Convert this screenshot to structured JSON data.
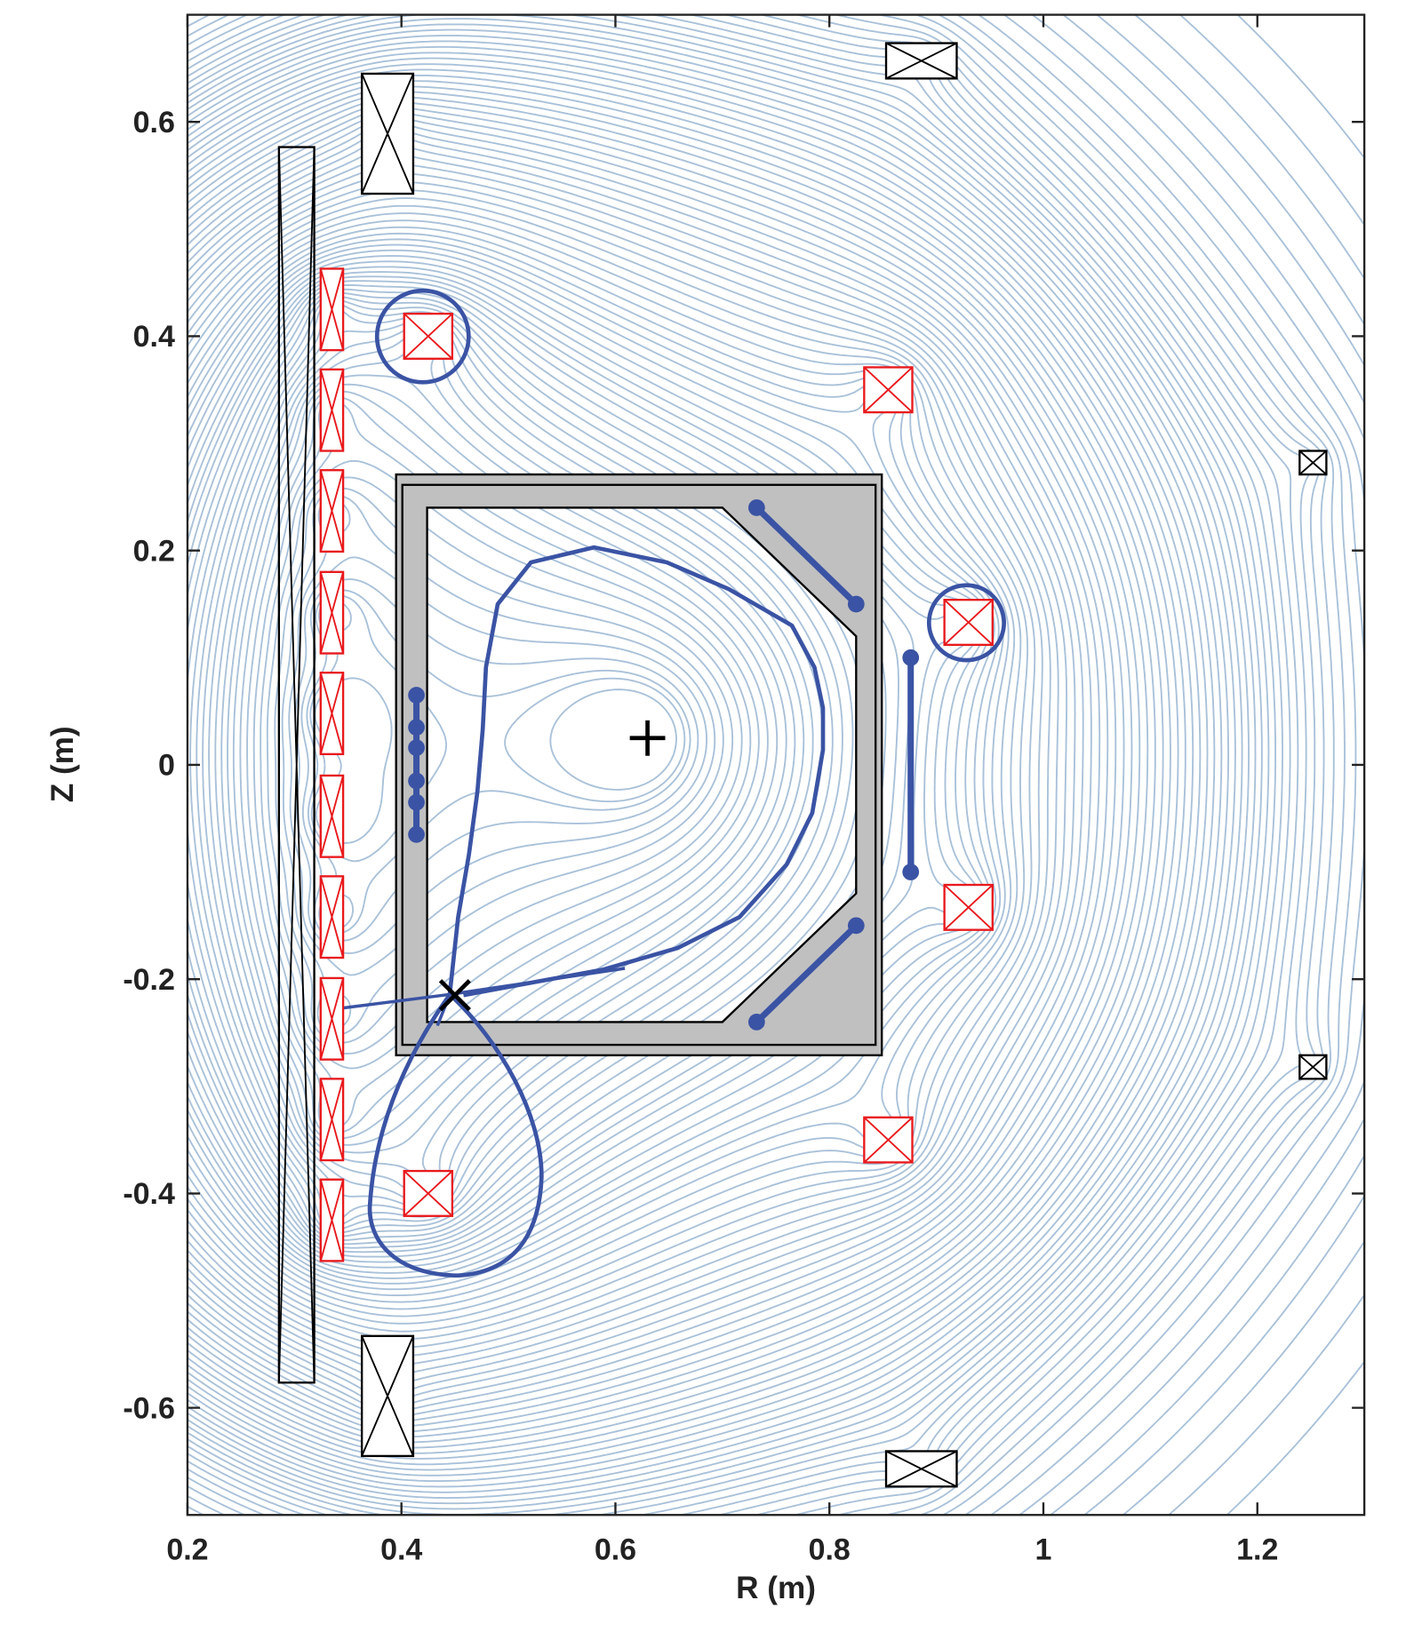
{
  "chart_data": {
    "type": "equilibrium",
    "xlabel": "R (m)",
    "ylabel": "Z (m)",
    "xlim": [
      0.2,
      1.3
    ],
    "ylim": [
      -0.7,
      0.7
    ],
    "xticks": [
      0.2,
      0.4,
      0.6,
      0.8,
      1,
      1.2
    ],
    "yticks": [
      -0.6,
      -0.4,
      -0.2,
      0,
      0.2,
      0.4,
      0.6
    ],
    "contour_color": "#a9c1d9",
    "coils": [
      {
        "R": 0.335,
        "Z": 0.425,
        "width": 0.021,
        "height": 0.076,
        "color": "#e8191c"
      },
      {
        "R": 0.335,
        "Z": 0.331,
        "width": 0.021,
        "height": 0.076,
        "color": "#e8191c"
      },
      {
        "R": 0.335,
        "Z": 0.237,
        "width": 0.021,
        "height": 0.076,
        "color": "#e8191c"
      },
      {
        "R": 0.335,
        "Z": 0.142,
        "width": 0.021,
        "height": 0.076,
        "color": "#e8191c"
      },
      {
        "R": 0.335,
        "Z": 0.048,
        "width": 0.021,
        "height": 0.076,
        "color": "#e8191c"
      },
      {
        "R": 0.335,
        "Z": -0.048,
        "width": 0.021,
        "height": 0.076,
        "color": "#e8191c"
      },
      {
        "R": 0.335,
        "Z": -0.142,
        "width": 0.021,
        "height": 0.076,
        "color": "#e8191c"
      },
      {
        "R": 0.335,
        "Z": -0.237,
        "width": 0.021,
        "height": 0.076,
        "color": "#e8191c"
      },
      {
        "R": 0.335,
        "Z": -0.331,
        "width": 0.021,
        "height": 0.076,
        "color": "#e8191c"
      },
      {
        "R": 0.335,
        "Z": -0.425,
        "width": 0.021,
        "height": 0.076,
        "color": "#e8191c"
      },
      {
        "R": 0.425,
        "Z": 0.4,
        "width": 0.045,
        "height": 0.042,
        "color": "#e8191c"
      },
      {
        "R": 0.855,
        "Z": 0.35,
        "width": 0.045,
        "height": 0.042,
        "color": "#e8191c"
      },
      {
        "R": 0.93,
        "Z": 0.133,
        "width": 0.045,
        "height": 0.042,
        "color": "#e8191c"
      },
      {
        "R": 0.93,
        "Z": -0.133,
        "width": 0.045,
        "height": 0.042,
        "color": "#e8191c"
      },
      {
        "R": 0.855,
        "Z": -0.35,
        "width": 0.045,
        "height": 0.042,
        "color": "#e8191c"
      },
      {
        "R": 0.425,
        "Z": -0.4,
        "width": 0.045,
        "height": 0.042,
        "color": "#e8191c"
      },
      {
        "R": 0.387,
        "Z": 0.589,
        "width": 0.048,
        "height": 0.112,
        "color": "#000000"
      },
      {
        "R": 0.387,
        "Z": -0.589,
        "width": 0.048,
        "height": 0.112,
        "color": "#000000"
      },
      {
        "R": 0.886,
        "Z": 0.657,
        "width": 0.066,
        "height": 0.033,
        "color": "#000000"
      },
      {
        "R": 0.886,
        "Z": -0.657,
        "width": 0.066,
        "height": 0.033,
        "color": "#000000"
      },
      {
        "R": 1.252,
        "Z": 0.282,
        "width": 0.025,
        "height": 0.022,
        "color": "#000000"
      },
      {
        "R": 1.252,
        "Z": -0.282,
        "width": 0.025,
        "height": 0.022,
        "color": "#000000"
      },
      {
        "R": 0.302,
        "Z": 0,
        "width": 0.033,
        "height": 1.153,
        "color": "#000000"
      }
    ],
    "vessel": {
      "R": [
        0.395,
        0.849
      ],
      "Z": [
        -0.271,
        0.271
      ],
      "color": "#c0c0c0",
      "wall_R": [
        0.424,
        0.7,
        0.825,
        0.825,
        0.7,
        0.424
      ],
      "wall_Z": [
        0.24,
        0.24,
        0.12,
        -0.12,
        -0.24,
        -0.24
      ]
    },
    "separatrix": {
      "color": "#3a53a4",
      "R": [
        0.445,
        0.453,
        0.463,
        0.471,
        0.476,
        0.479,
        0.49,
        0.521,
        0.58,
        0.648,
        0.706,
        0.765,
        0.786,
        0.794,
        0.794,
        0.784,
        0.76,
        0.716,
        0.658,
        0.589,
        0.512,
        0.458
      ],
      "Z": [
        -0.215,
        -0.142,
        -0.084,
        -0.025,
        0.033,
        0.091,
        0.15,
        0.189,
        0.203,
        0.189,
        0.164,
        0.13,
        0.091,
        0.053,
        0.014,
        -0.045,
        -0.093,
        -0.142,
        -0.171,
        -0.191,
        -0.205,
        -0.215
      ]
    },
    "plates": [
      {
        "R": [
          0.732,
          0.825
        ],
        "Z": [
          0.24,
          0.15
        ]
      },
      {
        "R": [
          0.732,
          0.825
        ],
        "Z": [
          -0.24,
          -0.15
        ]
      },
      {
        "R": [
          0.876,
          0.876
        ],
        "Z": [
          0.1,
          -0.1
        ]
      },
      {
        "R": [
          0.414,
          0.414,
          0.414,
          0.414,
          0.414,
          0.414
        ],
        "Z": [
          0.065,
          0.035,
          0.016,
          -0.015,
          -0.035,
          -0.065
        ]
      }
    ],
    "magnetic_axis": {
      "R": 0.63,
      "Z": 0.025
    },
    "x_point": {
      "R": 0.45,
      "Z": -0.215
    }
  }
}
